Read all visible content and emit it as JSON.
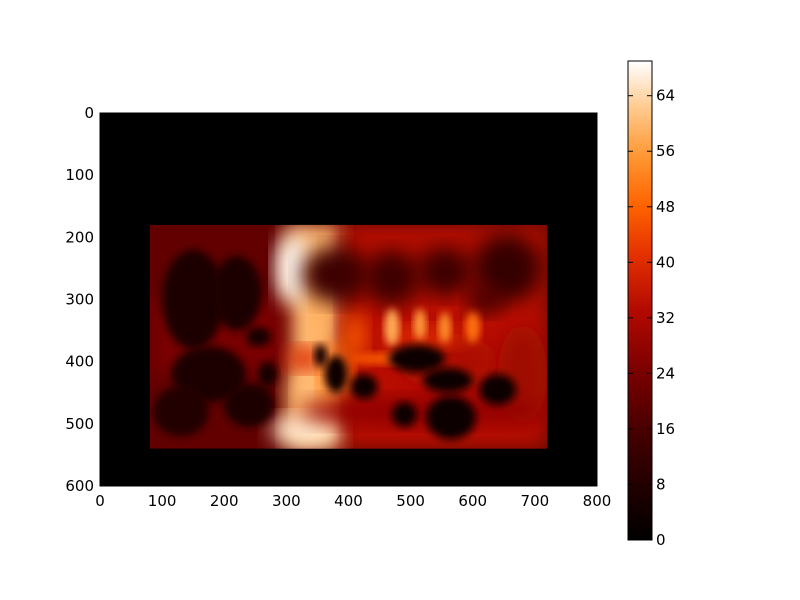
{
  "chart_data": {
    "type": "heatmap",
    "title": "",
    "xlabel": "",
    "ylabel": "",
    "colormap": "gist_heat",
    "x_ticks": [
      0,
      100,
      200,
      300,
      400,
      500,
      600,
      700,
      800
    ],
    "y_ticks": [
      0,
      100,
      200,
      300,
      400,
      500,
      600
    ],
    "xlim": [
      0,
      800
    ],
    "ylim": [
      600,
      0
    ],
    "y_axis_inverted": true,
    "colorbar": {
      "ticks": [
        0,
        8,
        16,
        24,
        32,
        40,
        48,
        56,
        64
      ],
      "range": [
        0,
        69
      ]
    },
    "background_value": 0,
    "data_extent": {
      "x": [
        80,
        720
      ],
      "y": [
        180,
        540
      ]
    },
    "regions": [
      {
        "kind": "field",
        "x": [
          80,
          720
        ],
        "y": [
          180,
          540
        ],
        "value": 20
      },
      {
        "kind": "field",
        "x": [
          300,
          390
        ],
        "y": [
          180,
          540
        ],
        "value": 60
      },
      {
        "kind": "field",
        "x": [
          390,
          720
        ],
        "y": [
          180,
          540
        ],
        "value": 34
      },
      {
        "kind": "field",
        "x": [
          80,
          300
        ],
        "y": [
          300,
          420
        ],
        "value": 24
      },
      {
        "kind": "blob",
        "center": [
          310,
          250
        ],
        "radius": [
          28,
          55
        ],
        "value": 68
      },
      {
        "kind": "blob",
        "center": [
          355,
          300
        ],
        "radius": [
          14,
          70
        ],
        "value": 58
      },
      {
        "kind": "blob",
        "center": [
          345,
          455
        ],
        "radius": [
          30,
          60
        ],
        "value": 60
      },
      {
        "kind": "blob",
        "center": [
          330,
          510
        ],
        "radius": [
          55,
          25
        ],
        "value": 66
      },
      {
        "kind": "blob",
        "center": [
          380,
          420
        ],
        "radius": [
          25,
          45
        ],
        "value": 50
      },
      {
        "kind": "blob",
        "center": [
          410,
          360
        ],
        "radius": [
          20,
          40
        ],
        "value": 46
      },
      {
        "kind": "blob",
        "center": [
          380,
          260
        ],
        "radius": [
          55,
          45
        ],
        "value": 14
      },
      {
        "kind": "blob",
        "center": [
          470,
          265
        ],
        "radius": [
          45,
          45
        ],
        "value": 14
      },
      {
        "kind": "blob",
        "center": [
          555,
          255
        ],
        "radius": [
          45,
          40
        ],
        "value": 14
      },
      {
        "kind": "blob",
        "center": [
          655,
          250
        ],
        "radius": [
          55,
          55
        ],
        "value": 12
      },
      {
        "kind": "blob",
        "center": [
          620,
          300
        ],
        "radius": [
          30,
          25
        ],
        "value": 16
      },
      {
        "kind": "blob",
        "center": [
          560,
          400
        ],
        "radius": [
          80,
          45
        ],
        "value": 32
      },
      {
        "kind": "blob",
        "center": [
          520,
          360
        ],
        "radius": [
          70,
          18
        ],
        "value": 40
      },
      {
        "kind": "blob",
        "center": [
          680,
          420
        ],
        "radius": [
          40,
          80
        ],
        "value": 30
      },
      {
        "kind": "blob",
        "center": [
          520,
          480
        ],
        "radius": [
          200,
          25
        ],
        "value": 28
      },
      {
        "kind": "blob",
        "center": [
          330,
          395
        ],
        "radius": [
          30,
          20
        ],
        "value": 40
      },
      {
        "kind": "spot",
        "center": [
          470,
          345
        ],
        "radius": [
          12,
          30
        ],
        "value": 58
      },
      {
        "kind": "spot",
        "center": [
          515,
          340
        ],
        "radius": [
          10,
          25
        ],
        "value": 56
      },
      {
        "kind": "spot",
        "center": [
          555,
          345
        ],
        "radius": [
          10,
          25
        ],
        "value": 54
      },
      {
        "kind": "spot",
        "center": [
          600,
          345
        ],
        "radius": [
          12,
          25
        ],
        "value": 50
      },
      {
        "kind": "spot",
        "center": [
          470,
          395
        ],
        "radius": [
          70,
          10
        ],
        "value": 46
      },
      {
        "kind": "hole",
        "center": [
          380,
          420
        ],
        "radius": [
          18,
          30
        ],
        "value": 2
      },
      {
        "kind": "hole",
        "center": [
          355,
          390
        ],
        "radius": [
          10,
          18
        ],
        "value": 2
      },
      {
        "kind": "hole",
        "center": [
          425,
          440
        ],
        "radius": [
          22,
          20
        ],
        "value": 2
      },
      {
        "kind": "hole",
        "center": [
          510,
          395
        ],
        "radius": [
          45,
          22
        ],
        "value": 3
      },
      {
        "kind": "hole",
        "center": [
          560,
          430
        ],
        "radius": [
          40,
          20
        ],
        "value": 3
      },
      {
        "kind": "hole",
        "center": [
          490,
          485
        ],
        "radius": [
          20,
          20
        ],
        "value": 2
      },
      {
        "kind": "hole",
        "center": [
          565,
          490
        ],
        "radius": [
          40,
          35
        ],
        "value": 2
      },
      {
        "kind": "hole",
        "center": [
          640,
          445
        ],
        "radius": [
          30,
          25
        ],
        "value": 3
      },
      {
        "kind": "hole",
        "center": [
          150,
          300
        ],
        "radius": [
          50,
          80
        ],
        "value": 6
      },
      {
        "kind": "hole",
        "center": [
          220,
          290
        ],
        "radius": [
          40,
          60
        ],
        "value": 6
      },
      {
        "kind": "hole",
        "center": [
          175,
          420
        ],
        "radius": [
          60,
          45
        ],
        "value": 6
      },
      {
        "kind": "hole",
        "center": [
          240,
          470
        ],
        "radius": [
          40,
          35
        ],
        "value": 6
      },
      {
        "kind": "hole",
        "center": [
          130,
          480
        ],
        "radius": [
          45,
          40
        ],
        "value": 8
      },
      {
        "kind": "hole",
        "center": [
          270,
          420
        ],
        "radius": [
          15,
          20
        ],
        "value": 4
      },
      {
        "kind": "hole",
        "center": [
          255,
          360
        ],
        "radius": [
          20,
          15
        ],
        "value": 4
      }
    ]
  }
}
